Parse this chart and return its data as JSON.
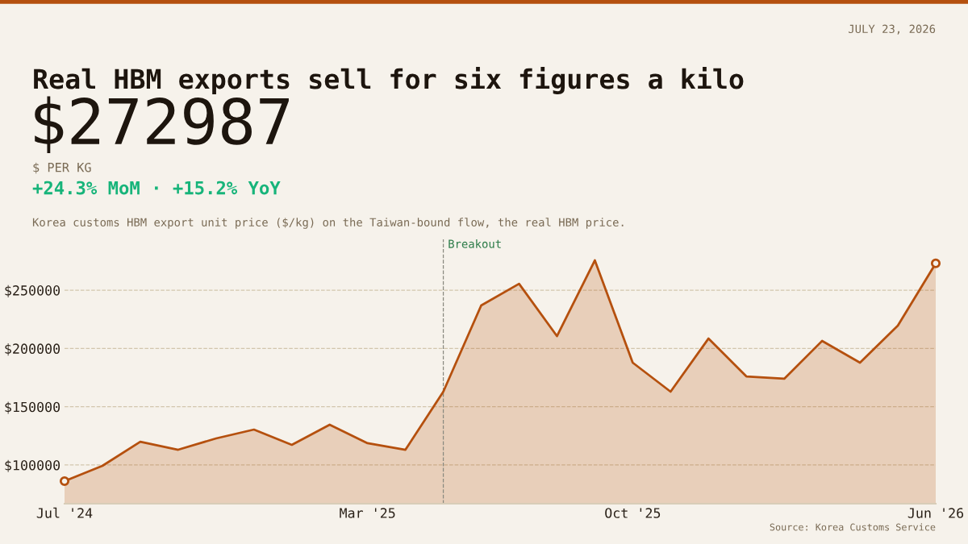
{
  "chart_data": {
    "type": "area",
    "title": "Real HBM exports sell for six figures a kilo",
    "annotations": [
      "JULY 23, 2026",
      "$272987",
      "$ PER KG",
      "+24.3% MoM · +15.2% YoY",
      "Korea customs HBM export unit price ($/kg) on the Taiwan-bound flow, the real HBM price.",
      "Source: Korea Customs Service"
    ],
    "x": [
      "2024-07",
      "2024-08",
      "2024-09",
      "2024-10",
      "2024-11",
      "2024-12",
      "2025-01",
      "2025-02",
      "2025-03",
      "2025-04",
      "2025-05",
      "2025-06",
      "2025-07",
      "2025-08",
      "2025-09",
      "2025-10",
      "2025-11",
      "2025-12",
      "2026-01",
      "2026-02",
      "2026-03",
      "2026-04",
      "2026-05",
      "2026-06"
    ],
    "series": [
      {
        "color": "#b5500e",
        "values": [
          86200,
          99300,
          120000,
          113100,
          122800,
          130400,
          117300,
          134600,
          118700,
          113100,
          162900,
          236900,
          255500,
          210600,
          275600,
          187800,
          162900,
          208500,
          176000,
          174000,
          206500,
          187800,
          219600,
          273000
        ]
      },
      {
        "type": "scatter",
        "color": "#b5500e",
        "marker": "circle",
        "x": [
          "2024-07",
          "2026-06"
        ],
        "values": [
          86200,
          273000
        ]
      }
    ],
    "xlim": [
      "2024-07",
      "2026-06"
    ],
    "xticks": [
      {
        "value": "2024-07",
        "label": "Jul '24"
      },
      {
        "value": "2025-03",
        "label": "Mar '25"
      },
      {
        "value": "2025-10",
        "label": "Oct '25"
      },
      {
        "value": "2026-06",
        "label": "Jun '26"
      }
    ],
    "ylim": [
      66800,
      293600
    ],
    "yticks": [
      {
        "value": 100000,
        "label": "$100000"
      },
      {
        "value": 150000,
        "label": "$150000"
      },
      {
        "value": 200000,
        "label": "$200000"
      },
      {
        "value": 250000,
        "label": "$250000"
      }
    ],
    "grid": "y",
    "ref_lines": [
      {
        "axis": "x",
        "value": "2025-05",
        "label": "Breakout",
        "color": "#8a8a80",
        "line_style": "dashed"
      }
    ]
  }
}
